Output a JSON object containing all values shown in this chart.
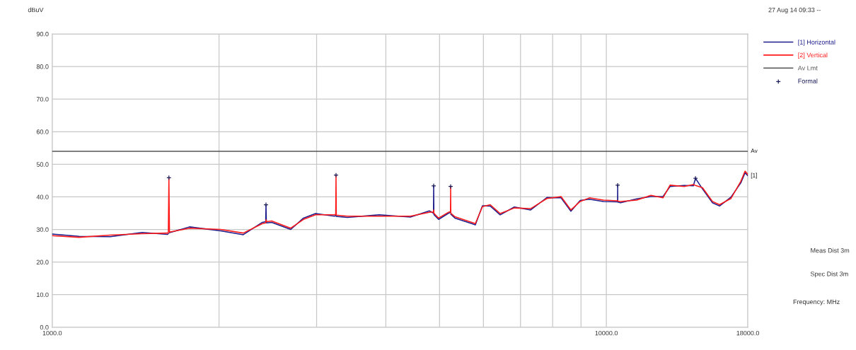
{
  "chart_data": {
    "type": "line",
    "ylabel": "dBuV",
    "log": "x",
    "xlim": [
      1000,
      18000
    ],
    "ylim": [
      0,
      90
    ],
    "xticks": [
      {
        "value": 1000,
        "label": "1000.0"
      },
      {
        "value": 2000,
        "label": null
      },
      {
        "value": 3000,
        "label": null
      },
      {
        "value": 4000,
        "label": null
      },
      {
        "value": 5000,
        "label": null
      },
      {
        "value": 6000,
        "label": null
      },
      {
        "value": 7000,
        "label": null
      },
      {
        "value": 8000,
        "label": null
      },
      {
        "value": 9000,
        "label": null
      },
      {
        "value": 10000,
        "label": "10000.0"
      },
      {
        "value": 18000,
        "label": "18000.0"
      }
    ],
    "yticks": [
      {
        "value": 0,
        "label": "0.0"
      },
      {
        "value": 10,
        "label": "10.0"
      },
      {
        "value": 20,
        "label": "20.0"
      },
      {
        "value": 30,
        "label": "30.0"
      },
      {
        "value": 40,
        "label": "40.0"
      },
      {
        "value": 50,
        "label": "50.0"
      },
      {
        "value": 60,
        "label": "60.0"
      },
      {
        "value": 70,
        "label": "70.0"
      },
      {
        "value": 80,
        "label": "80.0"
      },
      {
        "value": 90,
        "label": "90.0"
      }
    ],
    "grid": true,
    "legend": "right",
    "marker": "none",
    "line_style": "solid",
    "x": [
      1000,
      1118,
      1273,
      1453,
      1615,
      1620,
      1624,
      1628,
      1769,
      2014,
      2212,
      2395,
      2428,
      2431,
      2435,
      2489,
      2694,
      2841,
      2987,
      3233,
      3248,
      3252,
      3256,
      3409,
      3891,
      4429,
      4794,
      4876,
      4880,
      4884,
      4981,
      5190,
      5232,
      5236,
      5240,
      5330,
      5717,
      5802,
      5976,
      6173,
      6433,
      6823,
      7301,
      7812,
      8284,
      8631,
      8969,
      9318,
      9883,
      10478,
      10482,
      10486,
      10605,
      11347,
      12035,
      12654,
      13030,
      13818,
      14357,
      14484,
      14915,
      15543,
      16006,
      16780,
      17486,
      17796,
      18000
    ],
    "series": [
      {
        "name": "[1] Horizontal",
        "color": "#1c1c8c",
        "values": [
          28.6,
          27.9,
          27.8,
          29.1,
          28.5,
          28.7,
          null,
          29.0,
          30.8,
          29.6,
          28.4,
          32.2,
          32.4,
          37.6,
          32.0,
          32.2,
          30.0,
          33.5,
          34.9,
          34.1,
          34.3,
          null,
          34.0,
          33.7,
          34.5,
          33.8,
          35.7,
          35.0,
          43.4,
          34.6,
          33.1,
          35.0,
          35.2,
          null,
          34.7,
          33.5,
          31.8,
          31.4,
          37.3,
          37.2,
          34.5,
          36.9,
          36.0,
          39.8,
          39.7,
          35.6,
          38.9,
          39.3,
          38.6,
          38.5,
          43.6,
          38.4,
          38.2,
          39.4,
          40.1,
          40.1,
          43.2,
          43.5,
          43.4,
          45.7,
          42.4,
          38.2,
          37.2,
          39.9,
          44.3,
          47.4,
          46.5
        ]
      },
      {
        "name": "[2] Vertical",
        "color": "#ff1a1a",
        "values": [
          28.1,
          27.6,
          28.3,
          28.7,
          28.9,
          28.9,
          45.9,
          29.2,
          30.4,
          30.0,
          28.9,
          31.8,
          32.0,
          33.0,
          32.4,
          32.6,
          30.4,
          33.1,
          34.5,
          34.5,
          34.6,
          46.7,
          34.4,
          34.1,
          34.1,
          34.1,
          35.3,
          35.4,
          36.0,
          35.0,
          33.5,
          35.3,
          35.5,
          43.2,
          35.0,
          33.9,
          32.2,
          31.8,
          37.0,
          37.6,
          34.9,
          36.6,
          36.4,
          39.5,
          40.1,
          36.0,
          38.6,
          39.7,
          39.0,
          38.8,
          38.9,
          38.7,
          38.6,
          39.0,
          40.5,
          39.7,
          43.6,
          43.2,
          43.8,
          43.5,
          42.8,
          38.6,
          37.6,
          39.5,
          44.8,
          47.9,
          46.9
        ]
      },
      {
        "name": "Av Lmt",
        "color": "#555555",
        "x": [
          1000,
          18000
        ],
        "values": [
          54,
          54
        ]
      },
      {
        "name": "Formal",
        "type": "scatter",
        "marker": "cross",
        "color": "#1c1c5c",
        "x": [
          1624,
          2431,
          3252,
          4880,
          5236,
          10482,
          14484
        ],
        "values": [
          45.9,
          37.6,
          46.7,
          43.4,
          43.2,
          43.6,
          45.7
        ]
      }
    ],
    "annotations": [
      "27 Aug 14 09:33 --",
      {
        "text": "Av",
        "x": 18000,
        "y": 54
      },
      {
        "text": "[1]",
        "x": 18000,
        "y": 46.5
      },
      "Meas Dist 3m",
      "Spec Dist 3m",
      "Frequency: MHz"
    ]
  }
}
